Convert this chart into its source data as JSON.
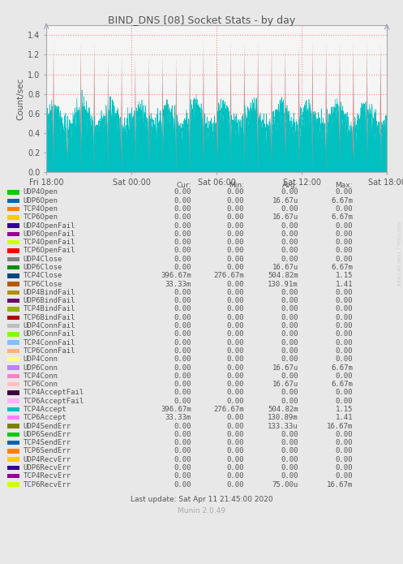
{
  "title": "BIND_DNS [08] Socket Stats - by day",
  "ylabel": "Count/sec",
  "yticks": [
    0.0,
    0.2,
    0.4,
    0.6,
    0.8,
    1.0,
    1.2,
    1.4
  ],
  "ylim": [
    0.0,
    1.5
  ],
  "xtick_labels": [
    "Fri 18:00",
    "Sat 00:00",
    "Sat 06:00",
    "Sat 12:00",
    "Sat 18:00"
  ],
  "bg_color": "#e8e8e8",
  "plot_bg_color": "#f5f5f5",
  "grid_color": "#ff8080",
  "title_color": "#555555",
  "label_color": "#555555",
  "watermark": "RRDTOOL / TOBI OETIKER",
  "munin_version": "Munin 2.0.49",
  "last_update": "Last update: Sat Apr 11 21:45:00 2020",
  "teal_color": "#00c0c0",
  "pink_color": "#cc8888",
  "n_points": 2000,
  "n_spikes": 25,
  "legend_items": [
    {
      "label": "UDP4Open",
      "color": "#00cc00",
      "cur": "0.00",
      "min": "0.00",
      "avg": "0.00",
      "max": "0.00"
    },
    {
      "label": "UDP6Open",
      "color": "#0066b3",
      "cur": "0.00",
      "min": "0.00",
      "avg": "16.67u",
      "max": "6.67m"
    },
    {
      "label": "TCP4Open",
      "color": "#ff8000",
      "cur": "0.00",
      "min": "0.00",
      "avg": "0.00",
      "max": "0.00"
    },
    {
      "label": "TCP6Open",
      "color": "#ffcc00",
      "cur": "0.00",
      "min": "0.00",
      "avg": "16.67u",
      "max": "6.67m"
    },
    {
      "label": "UDP4OpenFail",
      "color": "#330099",
      "cur": "0.00",
      "min": "0.00",
      "avg": "0.00",
      "max": "0.00"
    },
    {
      "label": "UDP6OpenFail",
      "color": "#990099",
      "cur": "0.00",
      "min": "0.00",
      "avg": "0.00",
      "max": "0.00"
    },
    {
      "label": "TCP4OpenFail",
      "color": "#ccff00",
      "cur": "0.00",
      "min": "0.00",
      "avg": "0.00",
      "max": "0.00"
    },
    {
      "label": "TCP6OpenFail",
      "color": "#ff0000",
      "cur": "0.00",
      "min": "0.00",
      "avg": "0.00",
      "max": "0.00"
    },
    {
      "label": "UDP4Close",
      "color": "#808080",
      "cur": "0.00",
      "min": "0.00",
      "avg": "0.00",
      "max": "0.00"
    },
    {
      "label": "UDP6Close",
      "color": "#008f00",
      "cur": "0.00",
      "min": "0.00",
      "avg": "16.67u",
      "max": "6.67m"
    },
    {
      "label": "TCP4Close",
      "color": "#00487d",
      "cur": "396.67m",
      "min": "276.67m",
      "avg": "504.82m",
      "max": "1.15"
    },
    {
      "label": "TCP6Close",
      "color": "#b35a00",
      "cur": "33.33m",
      "min": "0.00",
      "avg": "130.91m",
      "max": "1.41"
    },
    {
      "label": "UDP4BindFail",
      "color": "#b38f00",
      "cur": "0.00",
      "min": "0.00",
      "avg": "0.00",
      "max": "0.00"
    },
    {
      "label": "UDP6BindFail",
      "color": "#6b006b",
      "cur": "0.00",
      "min": "0.00",
      "avg": "0.00",
      "max": "0.00"
    },
    {
      "label": "TCP4BindFail",
      "color": "#8fb300",
      "cur": "0.00",
      "min": "0.00",
      "avg": "0.00",
      "max": "0.00"
    },
    {
      "label": "TCP6BindFail",
      "color": "#b30000",
      "cur": "0.00",
      "min": "0.00",
      "avg": "0.00",
      "max": "0.00"
    },
    {
      "label": "UDP4ConnFail",
      "color": "#bebebe",
      "cur": "0.00",
      "min": "0.00",
      "avg": "0.00",
      "max": "0.00"
    },
    {
      "label": "UDP6ConnFail",
      "color": "#80ff00",
      "cur": "0.00",
      "min": "0.00",
      "avg": "0.00",
      "max": "0.00"
    },
    {
      "label": "TCP4ConnFail",
      "color": "#80c0ff",
      "cur": "0.00",
      "min": "0.00",
      "avg": "0.00",
      "max": "0.00"
    },
    {
      "label": "TCP6ConnFail",
      "color": "#ffb080",
      "cur": "0.00",
      "min": "0.00",
      "avg": "0.00",
      "max": "0.00"
    },
    {
      "label": "UDP4Conn",
      "color": "#ffff80",
      "cur": "0.00",
      "min": "0.00",
      "avg": "0.00",
      "max": "0.00"
    },
    {
      "label": "UDP6Conn",
      "color": "#c080ff",
      "cur": "0.00",
      "min": "0.00",
      "avg": "16.67u",
      "max": "6.67m"
    },
    {
      "label": "TCP4Conn",
      "color": "#ff80c0",
      "cur": "0.00",
      "min": "0.00",
      "avg": "0.00",
      "max": "0.00"
    },
    {
      "label": "TCP6Conn",
      "color": "#ffc0c0",
      "cur": "0.00",
      "min": "0.00",
      "avg": "16.67u",
      "max": "6.67m"
    },
    {
      "label": "TCP4AcceptFail",
      "color": "#400040",
      "cur": "0.00",
      "min": "0.00",
      "avg": "0.00",
      "max": "0.00"
    },
    {
      "label": "TCP6AcceptFail",
      "color": "#ffb0ff",
      "cur": "0.00",
      "min": "0.00",
      "avg": "0.00",
      "max": "0.00"
    },
    {
      "label": "TCP4Accept",
      "color": "#00c0c0",
      "cur": "396.67m",
      "min": "276.67m",
      "avg": "504.82m",
      "max": "1.15"
    },
    {
      "label": "TCP6Accept",
      "color": "#ff80ff",
      "cur": "33.33m",
      "min": "0.00",
      "avg": "130.89m",
      "max": "1.41"
    },
    {
      "label": "UDP4SendErr",
      "color": "#808000",
      "cur": "0.00",
      "min": "0.00",
      "avg": "133.33u",
      "max": "16.67m"
    },
    {
      "label": "UDP6SendErr",
      "color": "#00cc00",
      "cur": "0.00",
      "min": "0.00",
      "avg": "0.00",
      "max": "0.00"
    },
    {
      "label": "TCP4SendErr",
      "color": "#0066b3",
      "cur": "0.00",
      "min": "0.00",
      "avg": "0.00",
      "max": "0.00"
    },
    {
      "label": "TCP6SendErr",
      "color": "#ff8000",
      "cur": "0.00",
      "min": "0.00",
      "avg": "0.00",
      "max": "0.00"
    },
    {
      "label": "UDP4RecvErr",
      "color": "#ffcc00",
      "cur": "0.00",
      "min": "0.00",
      "avg": "0.00",
      "max": "0.00"
    },
    {
      "label": "UDP6RecvErr",
      "color": "#330099",
      "cur": "0.00",
      "min": "0.00",
      "avg": "0.00",
      "max": "0.00"
    },
    {
      "label": "TCP4RecvErr",
      "color": "#990099",
      "cur": "0.00",
      "min": "0.00",
      "avg": "0.00",
      "max": "0.00"
    },
    {
      "label": "TCP6RecvErr",
      "color": "#ccff00",
      "cur": "0.00",
      "min": "0.00",
      "avg": "75.00u",
      "max": "16.67m"
    }
  ]
}
